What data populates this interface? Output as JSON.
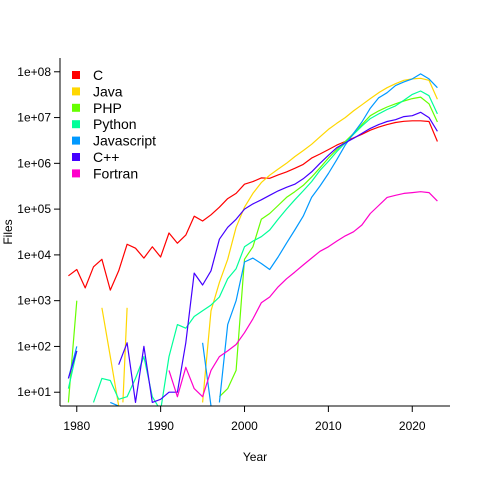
{
  "chart_data": {
    "type": "line",
    "xlabel": "Year",
    "ylabel": "Files",
    "xlim": [
      1978,
      2024.5
    ],
    "ylim": [
      5,
      200000000
    ],
    "ylog": true,
    "xticks": [
      1980,
      1990,
      2000,
      2010,
      2020
    ],
    "yticks": [
      {
        "value": 10,
        "label": "1e+01"
      },
      {
        "value": 100,
        "label": "1e+02"
      },
      {
        "value": 1000,
        "label": "1e+03"
      },
      {
        "value": 10000,
        "label": "1e+04"
      },
      {
        "value": 100000,
        "label": "1e+05"
      },
      {
        "value": 1000000,
        "label": "1e+06"
      },
      {
        "value": 10000000,
        "label": "1e+07"
      },
      {
        "value": 100000000,
        "label": "1e+08"
      }
    ],
    "legend_position": "top-left",
    "series": [
      {
        "name": "C",
        "color": "#ff0000",
        "points": [
          [
            1979,
            3500
          ],
          [
            1980,
            4800
          ],
          [
            1981,
            1900
          ],
          [
            1982,
            5500
          ],
          [
            1983,
            8000
          ],
          [
            1984,
            1700
          ],
          [
            1985,
            4500
          ],
          [
            1986,
            17000
          ],
          [
            1987,
            14000
          ],
          [
            1988,
            8500
          ],
          [
            1989,
            15000
          ],
          [
            1990,
            9000
          ],
          [
            1991,
            30000
          ],
          [
            1992,
            18000
          ],
          [
            1993,
            27000
          ],
          [
            1994,
            70000
          ],
          [
            1995,
            55000
          ],
          [
            1996,
            75000
          ],
          [
            1997,
            110000
          ],
          [
            1998,
            170000
          ],
          [
            1999,
            220000
          ],
          [
            2000,
            350000
          ],
          [
            2001,
            400000
          ],
          [
            2002,
            480000
          ],
          [
            2003,
            470000
          ],
          [
            2004,
            560000
          ],
          [
            2005,
            650000
          ],
          [
            2006,
            780000
          ],
          [
            2007,
            950000
          ],
          [
            2008,
            1300000
          ],
          [
            2009,
            1600000
          ],
          [
            2010,
            2000000
          ],
          [
            2011,
            2500000
          ],
          [
            2012,
            3000000
          ],
          [
            2013,
            3600000
          ],
          [
            2014,
            4300000
          ],
          [
            2015,
            5300000
          ],
          [
            2016,
            6200000
          ],
          [
            2017,
            7000000
          ],
          [
            2018,
            7800000
          ],
          [
            2019,
            8300000
          ],
          [
            2020,
            8500000
          ],
          [
            2021,
            8500000
          ],
          [
            2022,
            8200000
          ],
          [
            2023,
            3000000
          ]
        ]
      },
      {
        "name": "Java",
        "color": "#ffd700",
        "points": [
          [
            1983,
            700
          ],
          [
            1984,
            60
          ],
          [
            1985,
            5
          ],
          null,
          [
            1985.5,
            6
          ],
          [
            1986,
            700
          ],
          null,
          [
            1995,
            6
          ],
          [
            1996,
            600
          ],
          [
            1997,
            2500
          ],
          [
            1998,
            8000
          ],
          [
            1999,
            40000
          ],
          [
            2000,
            110000
          ],
          [
            2001,
            220000
          ],
          [
            2002,
            380000
          ],
          [
            2003,
            550000
          ],
          [
            2004,
            750000
          ],
          [
            2005,
            1000000
          ],
          [
            2006,
            1400000
          ],
          [
            2007,
            1900000
          ],
          [
            2008,
            2600000
          ],
          [
            2009,
            3800000
          ],
          [
            2010,
            5500000
          ],
          [
            2011,
            7500000
          ],
          [
            2012,
            10000000
          ],
          [
            2013,
            14000000
          ],
          [
            2014,
            19000000
          ],
          [
            2015,
            26000000
          ],
          [
            2016,
            35000000
          ],
          [
            2017,
            45000000
          ],
          [
            2018,
            55000000
          ],
          [
            2019,
            65000000
          ],
          [
            2020,
            70000000
          ],
          [
            2021,
            72000000
          ],
          [
            2022,
            65000000
          ],
          [
            2023,
            25000000
          ]
        ]
      },
      {
        "name": "PHP",
        "color": "#66ff00",
        "points": [
          [
            1979,
            6
          ],
          [
            1980,
            1000
          ],
          null,
          [
            1997,
            8
          ],
          [
            1998,
            12
          ],
          [
            1999,
            30
          ],
          [
            2000,
            8000
          ],
          [
            2001,
            15000
          ],
          [
            2002,
            60000
          ],
          [
            2003,
            80000
          ],
          [
            2004,
            120000
          ],
          [
            2005,
            180000
          ],
          [
            2006,
            240000
          ],
          [
            2007,
            330000
          ],
          [
            2008,
            500000
          ],
          [
            2009,
            800000
          ],
          [
            2010,
            1300000
          ],
          [
            2011,
            2000000
          ],
          [
            2012,
            3000000
          ],
          [
            2013,
            4500000
          ],
          [
            2014,
            7000000
          ],
          [
            2015,
            11000000
          ],
          [
            2016,
            14000000
          ],
          [
            2017,
            17000000
          ],
          [
            2018,
            20000000
          ],
          [
            2019,
            23000000
          ],
          [
            2020,
            26000000
          ],
          [
            2021,
            28000000
          ],
          [
            2022,
            20000000
          ],
          [
            2023,
            8000000
          ]
        ]
      },
      {
        "name": "Python",
        "color": "#00ff99",
        "points": [
          [
            1979,
            12
          ],
          [
            1980,
            80
          ],
          null,
          [
            1982,
            6
          ],
          [
            1983,
            20
          ],
          [
            1984,
            18
          ],
          [
            1985,
            7
          ],
          [
            1986,
            8
          ],
          [
            1987,
            20
          ],
          [
            1988,
            60
          ],
          [
            1989,
            8
          ],
          [
            1990,
            4
          ],
          [
            1991,
            60
          ],
          [
            1992,
            300
          ],
          [
            1993,
            250
          ],
          [
            1994,
            450
          ],
          [
            1995,
            600
          ],
          [
            1996,
            800
          ],
          [
            1997,
            1200
          ],
          [
            1998,
            3000
          ],
          [
            1999,
            5000
          ],
          [
            2000,
            15000
          ],
          [
            2001,
            20000
          ],
          [
            2002,
            25000
          ],
          [
            2003,
            35000
          ],
          [
            2004,
            60000
          ],
          [
            2005,
            100000
          ],
          [
            2006,
            160000
          ],
          [
            2007,
            250000
          ],
          [
            2008,
            400000
          ],
          [
            2009,
            700000
          ],
          [
            2010,
            1100000
          ],
          [
            2011,
            1800000
          ],
          [
            2012,
            2800000
          ],
          [
            2013,
            4300000
          ],
          [
            2014,
            6500000
          ],
          [
            2015,
            9500000
          ],
          [
            2016,
            12000000
          ],
          [
            2017,
            15000000
          ],
          [
            2018,
            18000000
          ],
          [
            2019,
            24000000
          ],
          [
            2020,
            32000000
          ],
          [
            2021,
            38000000
          ],
          [
            2022,
            30000000
          ],
          [
            2023,
            12000000
          ]
        ]
      },
      {
        "name": "Javascript",
        "color": "#0099ff",
        "points": [
          [
            1979,
            20
          ],
          [
            1980,
            100
          ],
          null,
          [
            1984,
            6
          ],
          [
            1985,
            5
          ],
          null,
          [
            1995,
            120
          ],
          [
            1996,
            5
          ],
          null,
          [
            1997,
            6
          ],
          [
            1998,
            300
          ],
          [
            1999,
            1000
          ],
          [
            2000,
            7000
          ],
          [
            2001,
            8500
          ],
          [
            2002,
            6500
          ],
          [
            2003,
            4800
          ],
          [
            2004,
            9000
          ],
          [
            2005,
            18000
          ],
          [
            2006,
            35000
          ],
          [
            2007,
            70000
          ],
          [
            2008,
            180000
          ],
          [
            2009,
            320000
          ],
          [
            2010,
            600000
          ],
          [
            2011,
            1200000
          ],
          [
            2012,
            2500000
          ],
          [
            2013,
            4500000
          ],
          [
            2014,
            8000000
          ],
          [
            2015,
            16000000
          ],
          [
            2016,
            27000000
          ],
          [
            2017,
            35000000
          ],
          [
            2018,
            50000000
          ],
          [
            2019,
            60000000
          ],
          [
            2020,
            70000000
          ],
          [
            2021,
            90000000
          ],
          [
            2022,
            70000000
          ],
          [
            2023,
            45000000
          ]
        ]
      },
      {
        "name": "C++",
        "color": "#4400ff",
        "points": [
          [
            1979,
            20
          ],
          [
            1980,
            80
          ],
          null,
          [
            1985,
            40
          ],
          [
            1986,
            120
          ],
          [
            1987,
            6
          ],
          [
            1988,
            100
          ],
          [
            1989,
            6
          ],
          [
            1990,
            7
          ],
          [
            1991,
            10
          ],
          [
            1992,
            10
          ],
          [
            1993,
            120
          ],
          [
            1994,
            4000
          ],
          [
            1995,
            2200
          ],
          [
            1996,
            4500
          ],
          [
            1997,
            22000
          ],
          [
            1998,
            40000
          ],
          [
            1999,
            60000
          ],
          [
            2000,
            100000
          ],
          [
            2001,
            130000
          ],
          [
            2002,
            160000
          ],
          [
            2003,
            200000
          ],
          [
            2004,
            250000
          ],
          [
            2005,
            300000
          ],
          [
            2006,
            350000
          ],
          [
            2007,
            460000
          ],
          [
            2008,
            650000
          ],
          [
            2009,
            1000000
          ],
          [
            2010,
            1500000
          ],
          [
            2011,
            2200000
          ],
          [
            2012,
            2800000
          ],
          [
            2013,
            3500000
          ],
          [
            2014,
            4500000
          ],
          [
            2015,
            5800000
          ],
          [
            2016,
            7000000
          ],
          [
            2017,
            8200000
          ],
          [
            2018,
            9000000
          ],
          [
            2019,
            10500000
          ],
          [
            2020,
            11000000
          ],
          [
            2021,
            13000000
          ],
          [
            2022,
            10000000
          ],
          [
            2023,
            5000000
          ]
        ]
      },
      {
        "name": "Fortran",
        "color": "#ff00cc",
        "points": [
          [
            1991,
            30
          ],
          [
            1992,
            8
          ],
          [
            1993,
            35
          ],
          [
            1994,
            12
          ],
          [
            1995,
            8
          ],
          [
            1996,
            30
          ],
          [
            1997,
            60
          ],
          [
            1998,
            80
          ],
          [
            1999,
            110
          ],
          [
            2000,
            200
          ],
          [
            2001,
            400
          ],
          [
            2002,
            900
          ],
          [
            2003,
            1200
          ],
          [
            2004,
            2000
          ],
          [
            2005,
            3000
          ],
          [
            2006,
            4200
          ],
          [
            2007,
            6000
          ],
          [
            2008,
            8500
          ],
          [
            2009,
            12000
          ],
          [
            2010,
            15000
          ],
          [
            2011,
            20000
          ],
          [
            2012,
            26000
          ],
          [
            2013,
            32000
          ],
          [
            2014,
            45000
          ],
          [
            2015,
            80000
          ],
          [
            2016,
            120000
          ],
          [
            2017,
            180000
          ],
          [
            2018,
            200000
          ],
          [
            2019,
            220000
          ],
          [
            2020,
            230000
          ],
          [
            2021,
            240000
          ],
          [
            2022,
            230000
          ],
          [
            2023,
            150000
          ]
        ]
      }
    ]
  }
}
